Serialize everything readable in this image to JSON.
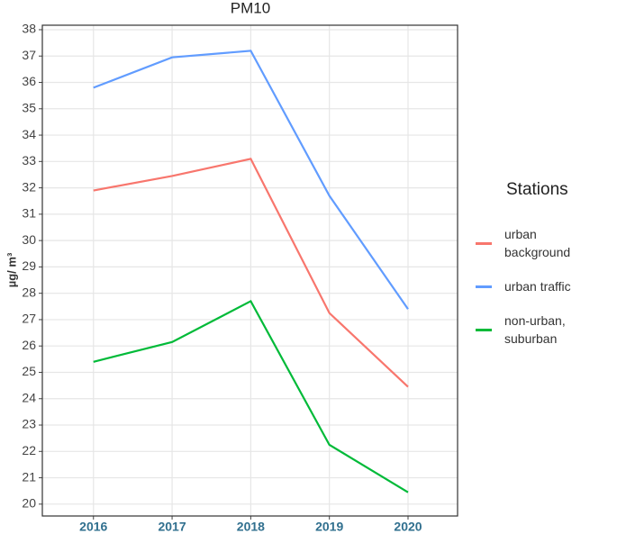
{
  "chart_data": {
    "type": "line",
    "title": "PM10",
    "y_label": "µg/ m³",
    "x": [
      2016,
      2017,
      2018,
      2019,
      2020
    ],
    "xlim": [
      2015.35,
      2020.63
    ],
    "xticks": [
      2016,
      2017,
      2018,
      2019,
      2020
    ],
    "ylim": [
      19.55,
      38.17
    ],
    "yticks": [
      20,
      21,
      22,
      23,
      24,
      25,
      26,
      27,
      28,
      29,
      30,
      31,
      32,
      33,
      34,
      35,
      36,
      37,
      38
    ],
    "grid": true,
    "legend_title": "Stations",
    "series": [
      {
        "name": "urban background",
        "color": "#F8766D",
        "values": [
          31.9,
          32.45,
          33.1,
          27.25,
          24.45
        ]
      },
      {
        "name": "urban traffic",
        "color": "#619CFF",
        "values": [
          35.8,
          36.95,
          37.2,
          31.7,
          27.4
        ]
      },
      {
        "name": "non-urban, suburban",
        "color": "#00BA38",
        "values": [
          25.4,
          26.15,
          27.7,
          22.25,
          20.45
        ]
      }
    ]
  }
}
